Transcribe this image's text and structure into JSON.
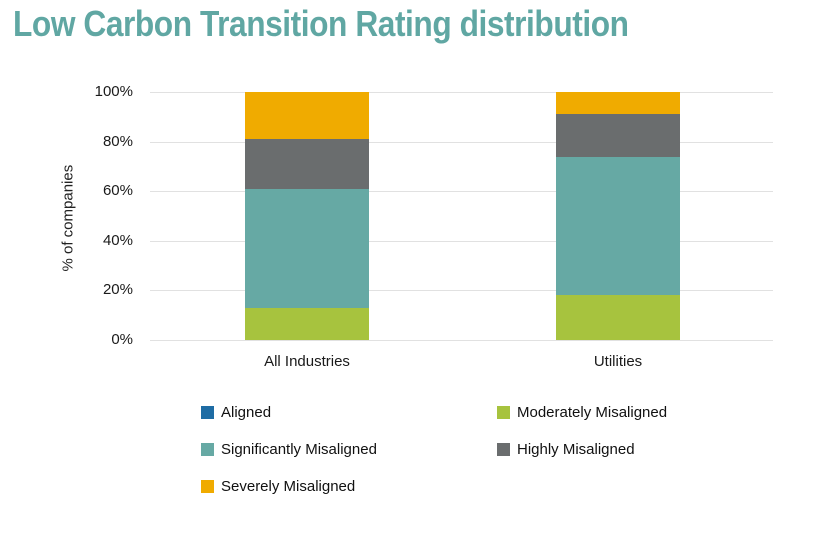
{
  "page": {
    "background": "#ffffff"
  },
  "chart_data": {
    "type": "bar",
    "stacked": true,
    "title": "Low Carbon Transition Rating distribution",
    "title_color": "#60A7A3",
    "ylabel": "% of companies",
    "xlabel": "",
    "categories": [
      "All Industries",
      "Utilities"
    ],
    "series": [
      {
        "name": "Aligned",
        "color": "#1E6CA4",
        "values": [
          0,
          0
        ]
      },
      {
        "name": "Moderately Misaligned",
        "color": "#A7C33E",
        "values": [
          13,
          18
        ]
      },
      {
        "name": "Significantly Misaligned",
        "color": "#66A9A4",
        "values": [
          48,
          56
        ]
      },
      {
        "name": "Highly Misaligned",
        "color": "#6A6D6E",
        "values": [
          20,
          17
        ]
      },
      {
        "name": "Severely Misaligned",
        "color": "#F0AB00",
        "values": [
          19,
          9
        ]
      }
    ],
    "ylim": [
      0,
      100
    ],
    "yticks": [
      "0%",
      "20%",
      "40%",
      "60%",
      "80%",
      "100%"
    ],
    "grid": "horizontal",
    "gridline_color": "#E1E1E1",
    "legend_position": "bottom",
    "axis_text_color": "#1a1a1a"
  }
}
